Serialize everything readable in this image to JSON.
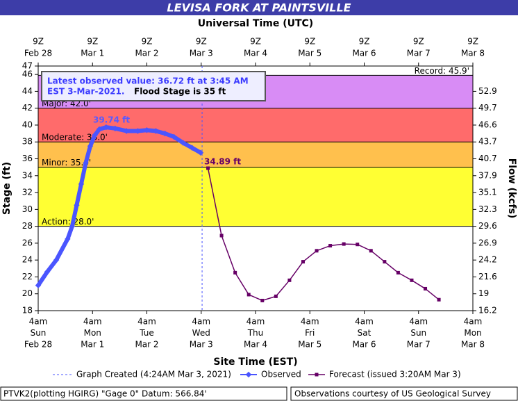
{
  "chart_data": {
    "type": "line",
    "title": "LEVISA FORK AT PAINTSVILLE",
    "top_axis_label": "Universal Time (UTC)",
    "x_label": "Site Time (EST)",
    "y_label": "Stage (ft)",
    "y2_label": "Flow (kcfs)",
    "xlim": [
      "2021-02-28T04:00",
      "2021-03-08T04:00"
    ],
    "xticks": [
      {
        "value": "2021-02-28T04:00",
        "label": [
          "4am",
          "Sun",
          "Feb 28"
        ]
      },
      {
        "value": "2021-03-01T04:00",
        "label": [
          "4am",
          "Mon",
          "Mar 1"
        ]
      },
      {
        "value": "2021-03-02T04:00",
        "label": [
          "4am",
          "Tue",
          "Mar 2"
        ]
      },
      {
        "value": "2021-03-03T04:00",
        "label": [
          "4am",
          "Wed",
          "Mar 3"
        ]
      },
      {
        "value": "2021-03-04T04:00",
        "label": [
          "4am",
          "Thu",
          "Mar 4"
        ]
      },
      {
        "value": "2021-03-05T04:00",
        "label": [
          "4am",
          "Fri",
          "Mar 5"
        ]
      },
      {
        "value": "2021-03-06T04:00",
        "label": [
          "4am",
          "Sat",
          "Mar 6"
        ]
      },
      {
        "value": "2021-03-07T04:00",
        "label": [
          "4am",
          "Sun",
          "Mar 7"
        ]
      },
      {
        "value": "2021-03-08T04:00",
        "label": [
          "4am",
          "Mon",
          "Mar 8"
        ]
      }
    ],
    "x2ticks": [
      {
        "value": "2021-02-28T04:00",
        "label": [
          "9Z",
          "Feb 28"
        ]
      },
      {
        "value": "2021-03-01T04:00",
        "label": [
          "9Z",
          "Mar 1"
        ]
      },
      {
        "value": "2021-03-02T04:00",
        "label": [
          "9Z",
          "Mar 2"
        ]
      },
      {
        "value": "2021-03-03T04:00",
        "label": [
          "9Z",
          "Mar 3"
        ]
      },
      {
        "value": "2021-03-04T04:00",
        "label": [
          "9Z",
          "Mar 4"
        ]
      },
      {
        "value": "2021-03-05T04:00",
        "label": [
          "9Z",
          "Mar 5"
        ]
      },
      {
        "value": "2021-03-06T04:00",
        "label": [
          "9Z",
          "Mar 6"
        ]
      },
      {
        "value": "2021-03-07T04:00",
        "label": [
          "9Z",
          "Mar 7"
        ]
      },
      {
        "value": "2021-03-08T04:00",
        "label": [
          "9Z",
          "Mar 8"
        ]
      }
    ],
    "ylim": [
      18,
      47
    ],
    "yticks": [
      18,
      20,
      22,
      24,
      26,
      28,
      30,
      32,
      34,
      36,
      38,
      40,
      42,
      44,
      46,
      47
    ],
    "y2ticks": [
      16.2,
      19.0,
      21.6,
      24.2,
      26.9,
      29.6,
      32.3,
      35.1,
      37.9,
      40.7,
      43.7,
      46.6,
      49.7,
      52.9
    ],
    "flood_categories": [
      {
        "label": "Action: 28.0'",
        "value": 28,
        "color": "#ffff33"
      },
      {
        "label": "Minor: 35.0'",
        "value": 35,
        "color": "#ffc04d"
      },
      {
        "label": "Moderate: 38.0'",
        "value": 38,
        "color": "#ff6b6b"
      },
      {
        "label": "Major: 42.0'",
        "value": 42,
        "color": "#d88cf5"
      }
    ],
    "record": {
      "label": "Record: 45.9'",
      "value": 45.9
    },
    "graph_created": {
      "label": "Graph Created (4:24AM Mar 3, 2021)",
      "x": "2021-03-03T04:24"
    },
    "latest_observed": [
      "Latest observed value: 36.72 ft at 3:45 AM",
      "EST 3-Mar-2021.",
      "Flood Stage is 35 ft"
    ],
    "annotations": [
      "39.74 ft",
      "34.89 ft"
    ],
    "series": [
      {
        "name": "Observed",
        "color": "#4a55ff",
        "x": [
          "2021-02-28T04:00",
          "2021-02-28T08:00",
          "2021-02-28T12:00",
          "2021-02-28T17:00",
          "2021-02-28T19:00",
          "2021-02-28T21:00",
          "2021-02-28T23:00",
          "2021-03-01T01:00",
          "2021-03-01T03:00",
          "2021-03-01T05:00",
          "2021-03-01T07:00",
          "2021-03-01T10:00",
          "2021-03-01T14:00",
          "2021-03-01T19:00",
          "2021-03-02T00:00",
          "2021-03-02T04:00",
          "2021-03-02T08:00",
          "2021-03-02T12:00",
          "2021-03-02T16:00",
          "2021-03-02T20:00",
          "2021-03-03T00:00",
          "2021-03-03T03:45"
        ],
        "values": [
          21.0,
          22.6,
          24.0,
          26.5,
          28.0,
          30.5,
          33.0,
          35.5,
          37.5,
          38.8,
          39.5,
          39.74,
          39.6,
          39.3,
          39.3,
          39.4,
          39.3,
          39.0,
          38.6,
          37.9,
          37.3,
          36.72
        ]
      },
      {
        "name": "Forecast (issued 3:20AM Mar 3)",
        "color": "#660066",
        "x": [
          "2021-03-03T07:00",
          "2021-03-03T13:00",
          "2021-03-03T19:00",
          "2021-03-04T01:00",
          "2021-03-04T07:00",
          "2021-03-04T13:00",
          "2021-03-04T19:00",
          "2021-03-05T01:00",
          "2021-03-05T07:00",
          "2021-03-05T13:00",
          "2021-03-05T19:00",
          "2021-03-06T01:00",
          "2021-03-06T07:00",
          "2021-03-06T13:00",
          "2021-03-06T19:00",
          "2021-03-07T01:00",
          "2021-03-07T07:00",
          "2021-03-07T13:00"
        ],
        "values": [
          34.89,
          26.9,
          22.5,
          19.9,
          19.2,
          19.7,
          21.6,
          23.8,
          25.1,
          25.7,
          25.9,
          25.85,
          25.1,
          23.8,
          22.5,
          21.6,
          20.6,
          19.3
        ]
      }
    ],
    "footer_left": "PTVK2(plotting HGIRG) \"Gage 0\" Datum: 566.84'",
    "footer_right": "Observations courtesy of US Geological Survey"
  }
}
